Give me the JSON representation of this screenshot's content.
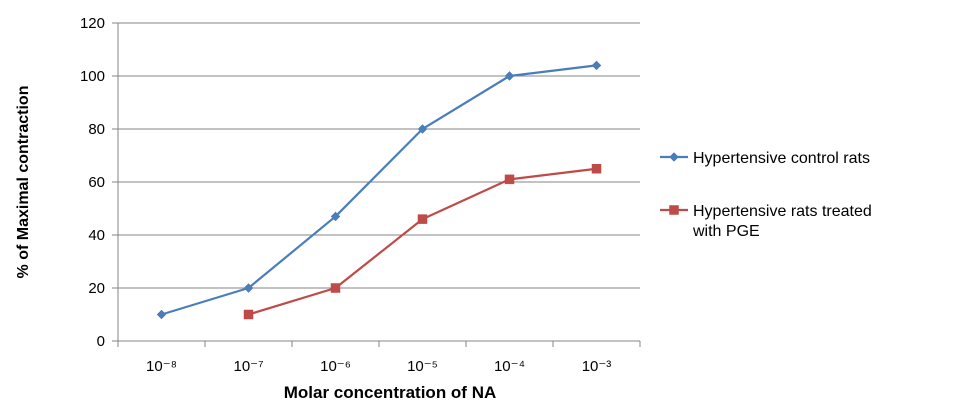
{
  "chart_data": {
    "type": "line",
    "title": "",
    "xlabel": "Molar concentration of NA",
    "ylabel": "% of Maximal contraction",
    "categories": [
      "10⁻⁸",
      "10⁻⁷",
      "10⁻⁶",
      "10⁻⁵",
      "10⁻⁴",
      "10⁻³"
    ],
    "ylim": [
      0,
      120
    ],
    "yticks": [
      0,
      20,
      40,
      60,
      80,
      100,
      120
    ],
    "grid": "horizontal",
    "legend_position": "right",
    "series": [
      {
        "name": "Hypertensive control rats",
        "marker": "diamond",
        "color": "#4A7EBB",
        "values": [
          10,
          20,
          47,
          80,
          100,
          104
        ]
      },
      {
        "name": "Hypertensive rats treated with PGE",
        "legend_lines": [
          "Hypertensive rats treated",
          "with PGE"
        ],
        "marker": "square",
        "color": "#BE4B48",
        "values": [
          null,
          10,
          20,
          46,
          61,
          65
        ]
      }
    ]
  }
}
